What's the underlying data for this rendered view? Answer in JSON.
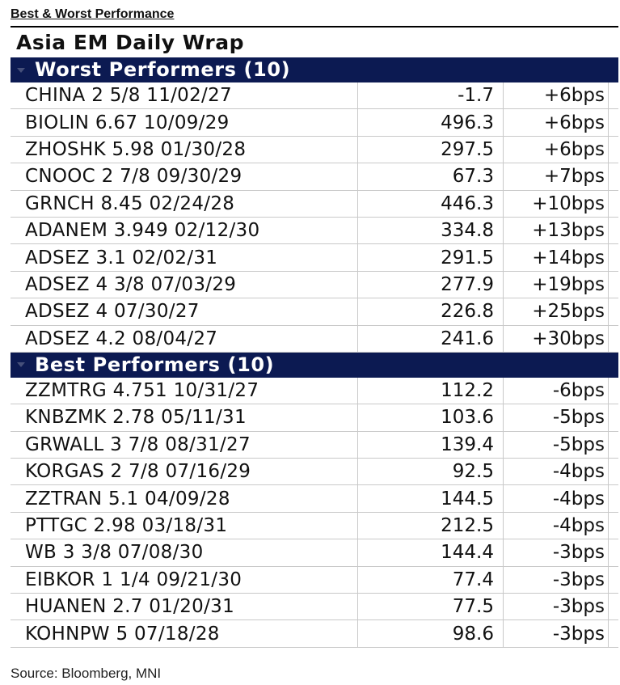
{
  "heading": "Best & Worst Performance",
  "title": "Asia EM Daily Wrap",
  "sections": {
    "worst": {
      "label": "Worst Performers (10)",
      "rows": [
        {
          "name": "CHINA 2 5/8 11/02/27",
          "spread": "-1.7",
          "change": "+6bps"
        },
        {
          "name": "BIOLIN 6.67 10/09/29",
          "spread": "496.3",
          "change": "+6bps"
        },
        {
          "name": "ZHOSHK 5.98 01/30/28",
          "spread": "297.5",
          "change": "+6bps"
        },
        {
          "name": "CNOOC 2 7/8 09/30/29",
          "spread": "67.3",
          "change": "+7bps"
        },
        {
          "name": "GRNCH 8.45 02/24/28",
          "spread": "446.3",
          "change": "+10bps"
        },
        {
          "name": "ADANEM 3.949 02/12/30",
          "spread": "334.8",
          "change": "+13bps"
        },
        {
          "name": "ADSEZ 3.1 02/02/31",
          "spread": "291.5",
          "change": "+14bps"
        },
        {
          "name": "ADSEZ 4 3/8 07/03/29",
          "spread": "277.9",
          "change": "+19bps"
        },
        {
          "name": "ADSEZ 4 07/30/27",
          "spread": "226.8",
          "change": "+25bps"
        },
        {
          "name": "ADSEZ 4.2 08/04/27",
          "spread": "241.6",
          "change": "+30bps"
        }
      ]
    },
    "best": {
      "label": "Best Performers (10)",
      "rows": [
        {
          "name": "ZZMTRG 4.751 10/31/27",
          "spread": "112.2",
          "change": "-6bps"
        },
        {
          "name": "KNBZMK 2.78 05/11/31",
          "spread": "103.6",
          "change": "-5bps"
        },
        {
          "name": "GRWALL 3 7/8 08/31/27",
          "spread": "139.4",
          "change": "-5bps"
        },
        {
          "name": "KORGAS 2 7/8 07/16/29",
          "spread": "92.5",
          "change": "-4bps"
        },
        {
          "name": "ZZTRAN 5.1 04/09/28",
          "spread": "144.5",
          "change": "-4bps"
        },
        {
          "name": "PTTGC 2.98 03/18/31",
          "spread": "212.5",
          "change": "-4bps"
        },
        {
          "name": "WB 3 3/8 07/08/30",
          "spread": "144.4",
          "change": "-3bps"
        },
        {
          "name": "EIBKOR 1 1/4 09/21/30",
          "spread": "77.4",
          "change": "-3bps"
        },
        {
          "name": "HUANEN 2.7 01/20/31",
          "spread": "77.5",
          "change": "-3bps"
        },
        {
          "name": "KOHNPW 5 07/18/28",
          "spread": "98.6",
          "change": "-3bps"
        }
      ]
    }
  },
  "source": "Source: Bloomberg, MNI",
  "colors": {
    "header_bg": "#0c1a52",
    "header_text": "#ffffff",
    "grid_line": "#c9c9c9"
  },
  "icons": {
    "section_toggle": "collapse-triangle-icon"
  }
}
